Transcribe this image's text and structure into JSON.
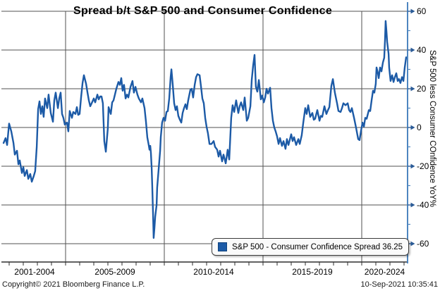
{
  "title": "Spread b/t S&P 500 and Consumer Confidence",
  "legend": {
    "label": "S&P 500 - Consumer Confidence Spread 36.25"
  },
  "footer": {
    "copyright": "Copyright© 2021 Bloomberg Finance L.P.",
    "timestamp": "10-Sep-2021 10:35:41"
  },
  "chart_data": {
    "type": "line",
    "title": "Spread b/t S&P 500 and Consumer Confidence",
    "xlabel": "",
    "ylabel": "S&P 500 less Consumer COnfidence YoY%",
    "ylim": [
      -70,
      60
    ],
    "yticks": [
      60,
      40,
      20,
      0,
      -20,
      -40,
      -60
    ],
    "xtick_labels": [
      "2001-2004",
      "2005-2009",
      "2010-2014",
      "2015-2019",
      "2020-2024"
    ],
    "x_gridline_years": [
      2005,
      2010,
      2015,
      2020
    ],
    "grid": true,
    "legend_position": "bottom-right",
    "last_value": 36.25,
    "colors": {
      "line": "#1c5aa6",
      "grid": "#525252",
      "axis_dark": "#2e2e2e",
      "axis_blue": "#4e86c0",
      "arrow": "#2a5a96",
      "text": "#000000"
    },
    "series": [
      {
        "name": "S&P 500 - Consumer Confidence Spread",
        "points": [
          [
            2001.86,
            -8
          ],
          [
            2001.96,
            -5.5
          ],
          [
            2002.04,
            -9
          ],
          [
            2002.14,
            2
          ],
          [
            2002.25,
            -2
          ],
          [
            2002.36,
            -8
          ],
          [
            2002.43,
            -14
          ],
          [
            2002.54,
            -12
          ],
          [
            2002.61,
            -19
          ],
          [
            2002.68,
            -17
          ],
          [
            2002.79,
            -23.5
          ],
          [
            2002.86,
            -20.5
          ],
          [
            2002.93,
            -25
          ],
          [
            2003.04,
            -22
          ],
          [
            2003.11,
            -26.5
          ],
          [
            2003.21,
            -24
          ],
          [
            2003.29,
            -28
          ],
          [
            2003.39,
            -25
          ],
          [
            2003.46,
            -22.5
          ],
          [
            2003.54,
            -10
          ],
          [
            2003.61,
            9.5
          ],
          [
            2003.68,
            13.5
          ],
          [
            2003.75,
            7
          ],
          [
            2003.82,
            11
          ],
          [
            2003.89,
            5.5
          ],
          [
            2003.96,
            15
          ],
          [
            2004.07,
            10
          ],
          [
            2004.14,
            17
          ],
          [
            2004.25,
            7.5
          ],
          [
            2004.36,
            3
          ],
          [
            2004.43,
            14
          ],
          [
            2004.5,
            18
          ],
          [
            2004.61,
            10
          ],
          [
            2004.68,
            15
          ],
          [
            2004.75,
            18
          ],
          [
            2004.82,
            7
          ],
          [
            2004.89,
            5
          ],
          [
            2004.96,
            1.5
          ],
          [
            2005.07,
            2.5
          ],
          [
            2005.14,
            -2
          ],
          [
            2005.21,
            8.5
          ],
          [
            2005.32,
            5
          ],
          [
            2005.39,
            8
          ],
          [
            2005.5,
            7
          ],
          [
            2005.57,
            10.5
          ],
          [
            2005.64,
            6.5
          ],
          [
            2005.71,
            7
          ],
          [
            2005.79,
            16
          ],
          [
            2005.86,
            23
          ],
          [
            2005.93,
            27
          ],
          [
            2006.04,
            22.5
          ],
          [
            2006.11,
            18
          ],
          [
            2006.18,
            14
          ],
          [
            2006.25,
            11
          ],
          [
            2006.32,
            12.5
          ],
          [
            2006.43,
            15
          ],
          [
            2006.5,
            13
          ],
          [
            2006.61,
            17
          ],
          [
            2006.68,
            14.5
          ],
          [
            2006.75,
            16
          ],
          [
            2006.82,
            16
          ],
          [
            2006.89,
            12.5
          ],
          [
            2006.96,
            -7
          ],
          [
            2007.04,
            -12.5
          ],
          [
            2007.14,
            -0.5
          ],
          [
            2007.18,
            10.5
          ],
          [
            2007.29,
            7
          ],
          [
            2007.36,
            13
          ],
          [
            2007.43,
            14
          ],
          [
            2007.5,
            17
          ],
          [
            2007.57,
            20
          ],
          [
            2007.68,
            23.5
          ],
          [
            2007.75,
            22
          ],
          [
            2007.82,
            25.5
          ],
          [
            2007.89,
            19
          ],
          [
            2007.96,
            22
          ],
          [
            2008.04,
            15
          ],
          [
            2008.11,
            17
          ],
          [
            2008.18,
            15.5
          ],
          [
            2008.29,
            21
          ],
          [
            2008.39,
            24
          ],
          [
            2008.46,
            18
          ],
          [
            2008.54,
            21
          ],
          [
            2008.64,
            17
          ],
          [
            2008.71,
            15
          ],
          [
            2008.82,
            13
          ],
          [
            2008.89,
            15
          ],
          [
            2009.0,
            10
          ],
          [
            2009.07,
            3
          ],
          [
            2009.14,
            -5
          ],
          [
            2009.21,
            -9
          ],
          [
            2009.25,
            -11.5
          ],
          [
            2009.29,
            -9.5
          ],
          [
            2009.32,
            -13
          ],
          [
            2009.36,
            -21
          ],
          [
            2009.39,
            -30
          ],
          [
            2009.43,
            -44
          ],
          [
            2009.46,
            -57
          ],
          [
            2009.5,
            -52
          ],
          [
            2009.54,
            -46
          ],
          [
            2009.61,
            -40
          ],
          [
            2009.64,
            -31
          ],
          [
            2009.71,
            -22
          ],
          [
            2009.79,
            -12
          ],
          [
            2009.82,
            -5
          ],
          [
            2009.89,
            2.5
          ],
          [
            2009.96,
            5
          ],
          [
            2010.04,
            3.5
          ],
          [
            2010.11,
            8
          ],
          [
            2010.18,
            8.5
          ],
          [
            2010.25,
            15
          ],
          [
            2010.32,
            26
          ],
          [
            2010.36,
            30
          ],
          [
            2010.43,
            22
          ],
          [
            2010.5,
            12.5
          ],
          [
            2010.57,
            9
          ],
          [
            2010.64,
            11
          ],
          [
            2010.71,
            6
          ],
          [
            2010.79,
            4
          ],
          [
            2010.86,
            2.5
          ],
          [
            2010.93,
            7.5
          ],
          [
            2011.0,
            10
          ],
          [
            2011.07,
            12
          ],
          [
            2011.14,
            9.5
          ],
          [
            2011.21,
            14
          ],
          [
            2011.32,
            19.5
          ],
          [
            2011.39,
            20
          ],
          [
            2011.46,
            15.5
          ],
          [
            2011.54,
            22
          ],
          [
            2011.61,
            26
          ],
          [
            2011.68,
            27.5
          ],
          [
            2011.79,
            27
          ],
          [
            2011.86,
            21
          ],
          [
            2011.93,
            15
          ],
          [
            2012.0,
            12.5
          ],
          [
            2012.07,
            5
          ],
          [
            2012.14,
            0.5
          ],
          [
            2012.21,
            -3
          ],
          [
            2012.29,
            -8.5
          ],
          [
            2012.39,
            -8.5
          ],
          [
            2012.5,
            -7
          ],
          [
            2012.57,
            -10
          ],
          [
            2012.68,
            -11.5
          ],
          [
            2012.75,
            -15
          ],
          [
            2012.82,
            -12
          ],
          [
            2012.93,
            -17.5
          ],
          [
            2013.0,
            -14
          ],
          [
            2013.11,
            -18.5
          ],
          [
            2013.21,
            -11.5
          ],
          [
            2013.29,
            -16.5
          ],
          [
            2013.39,
            5
          ],
          [
            2013.46,
            11.5
          ],
          [
            2013.54,
            8
          ],
          [
            2013.64,
            14
          ],
          [
            2013.75,
            7.5
          ],
          [
            2013.82,
            11
          ],
          [
            2013.89,
            13
          ],
          [
            2014.0,
            9
          ],
          [
            2014.07,
            15.5
          ],
          [
            2014.18,
            3.5
          ],
          [
            2014.25,
            5
          ],
          [
            2014.36,
            11
          ],
          [
            2014.43,
            24.5
          ],
          [
            2014.5,
            32
          ],
          [
            2014.57,
            37.5
          ],
          [
            2014.64,
            21
          ],
          [
            2014.71,
            18.5
          ],
          [
            2014.79,
            24.5
          ],
          [
            2014.89,
            14.5
          ],
          [
            2014.96,
            16.5
          ],
          [
            2015.04,
            13
          ],
          [
            2015.11,
            15.5
          ],
          [
            2015.18,
            20
          ],
          [
            2015.25,
            17.5
          ],
          [
            2015.36,
            20.5
          ],
          [
            2015.43,
            10
          ],
          [
            2015.5,
            3.5
          ],
          [
            2015.57,
            0
          ],
          [
            2015.64,
            -2
          ],
          [
            2015.71,
            -4.5
          ],
          [
            2015.79,
            -8.5
          ],
          [
            2015.86,
            -5.5
          ],
          [
            2015.96,
            -9.5
          ],
          [
            2016.04,
            -7
          ],
          [
            2016.14,
            -11
          ],
          [
            2016.21,
            -6
          ],
          [
            2016.29,
            -9
          ],
          [
            2016.43,
            -3.5
          ],
          [
            2016.5,
            -7
          ],
          [
            2016.57,
            -5
          ],
          [
            2016.68,
            -9
          ],
          [
            2016.79,
            -6
          ],
          [
            2016.86,
            -8.5
          ],
          [
            2016.96,
            -4
          ],
          [
            2017.04,
            2.5
          ],
          [
            2017.14,
            10
          ],
          [
            2017.21,
            7
          ],
          [
            2017.29,
            11.5
          ],
          [
            2017.39,
            5.5
          ],
          [
            2017.5,
            7.5
          ],
          [
            2017.57,
            4
          ],
          [
            2017.64,
            4.5
          ],
          [
            2017.75,
            9
          ],
          [
            2017.86,
            3.5
          ],
          [
            2017.93,
            6
          ],
          [
            2018.0,
            5.5
          ],
          [
            2018.11,
            11
          ],
          [
            2018.21,
            7
          ],
          [
            2018.29,
            9
          ],
          [
            2018.36,
            10.5
          ],
          [
            2018.46,
            21.5
          ],
          [
            2018.54,
            25
          ],
          [
            2018.64,
            18
          ],
          [
            2018.75,
            12.5
          ],
          [
            2018.82,
            8.5
          ],
          [
            2018.93,
            8
          ],
          [
            2019.0,
            10
          ],
          [
            2019.07,
            12.5
          ],
          [
            2019.18,
            11.5
          ],
          [
            2019.29,
            12.5
          ],
          [
            2019.36,
            9
          ],
          [
            2019.43,
            8
          ],
          [
            2019.5,
            10
          ],
          [
            2019.61,
            5
          ],
          [
            2019.71,
            0
          ],
          [
            2019.82,
            -6
          ],
          [
            2019.89,
            -6.5
          ],
          [
            2019.96,
            -2
          ],
          [
            2020.04,
            2.5
          ],
          [
            2020.11,
            0.5
          ],
          [
            2020.18,
            5
          ],
          [
            2020.25,
            4.5
          ],
          [
            2020.36,
            9
          ],
          [
            2020.43,
            8.5
          ],
          [
            2020.5,
            14
          ],
          [
            2020.57,
            19
          ],
          [
            2020.64,
            18
          ],
          [
            2020.71,
            22.5
          ],
          [
            2020.75,
            31
          ],
          [
            2020.82,
            28
          ],
          [
            2020.86,
            25.5
          ],
          [
            2020.93,
            31
          ],
          [
            2021.0,
            29
          ],
          [
            2021.07,
            33.5
          ],
          [
            2021.14,
            36
          ],
          [
            2021.18,
            45
          ],
          [
            2021.21,
            55
          ],
          [
            2021.25,
            50
          ],
          [
            2021.29,
            44
          ],
          [
            2021.36,
            38
          ],
          [
            2021.39,
            31
          ],
          [
            2021.46,
            24
          ],
          [
            2021.54,
            27
          ],
          [
            2021.61,
            23.5
          ],
          [
            2021.68,
            26
          ],
          [
            2021.75,
            28
          ],
          [
            2021.82,
            24
          ],
          [
            2021.89,
            25
          ],
          [
            2021.96,
            23
          ],
          [
            2022.04,
            26
          ],
          [
            2022.11,
            24
          ],
          [
            2022.18,
            31
          ],
          [
            2022.25,
            36.25
          ]
        ]
      }
    ]
  }
}
